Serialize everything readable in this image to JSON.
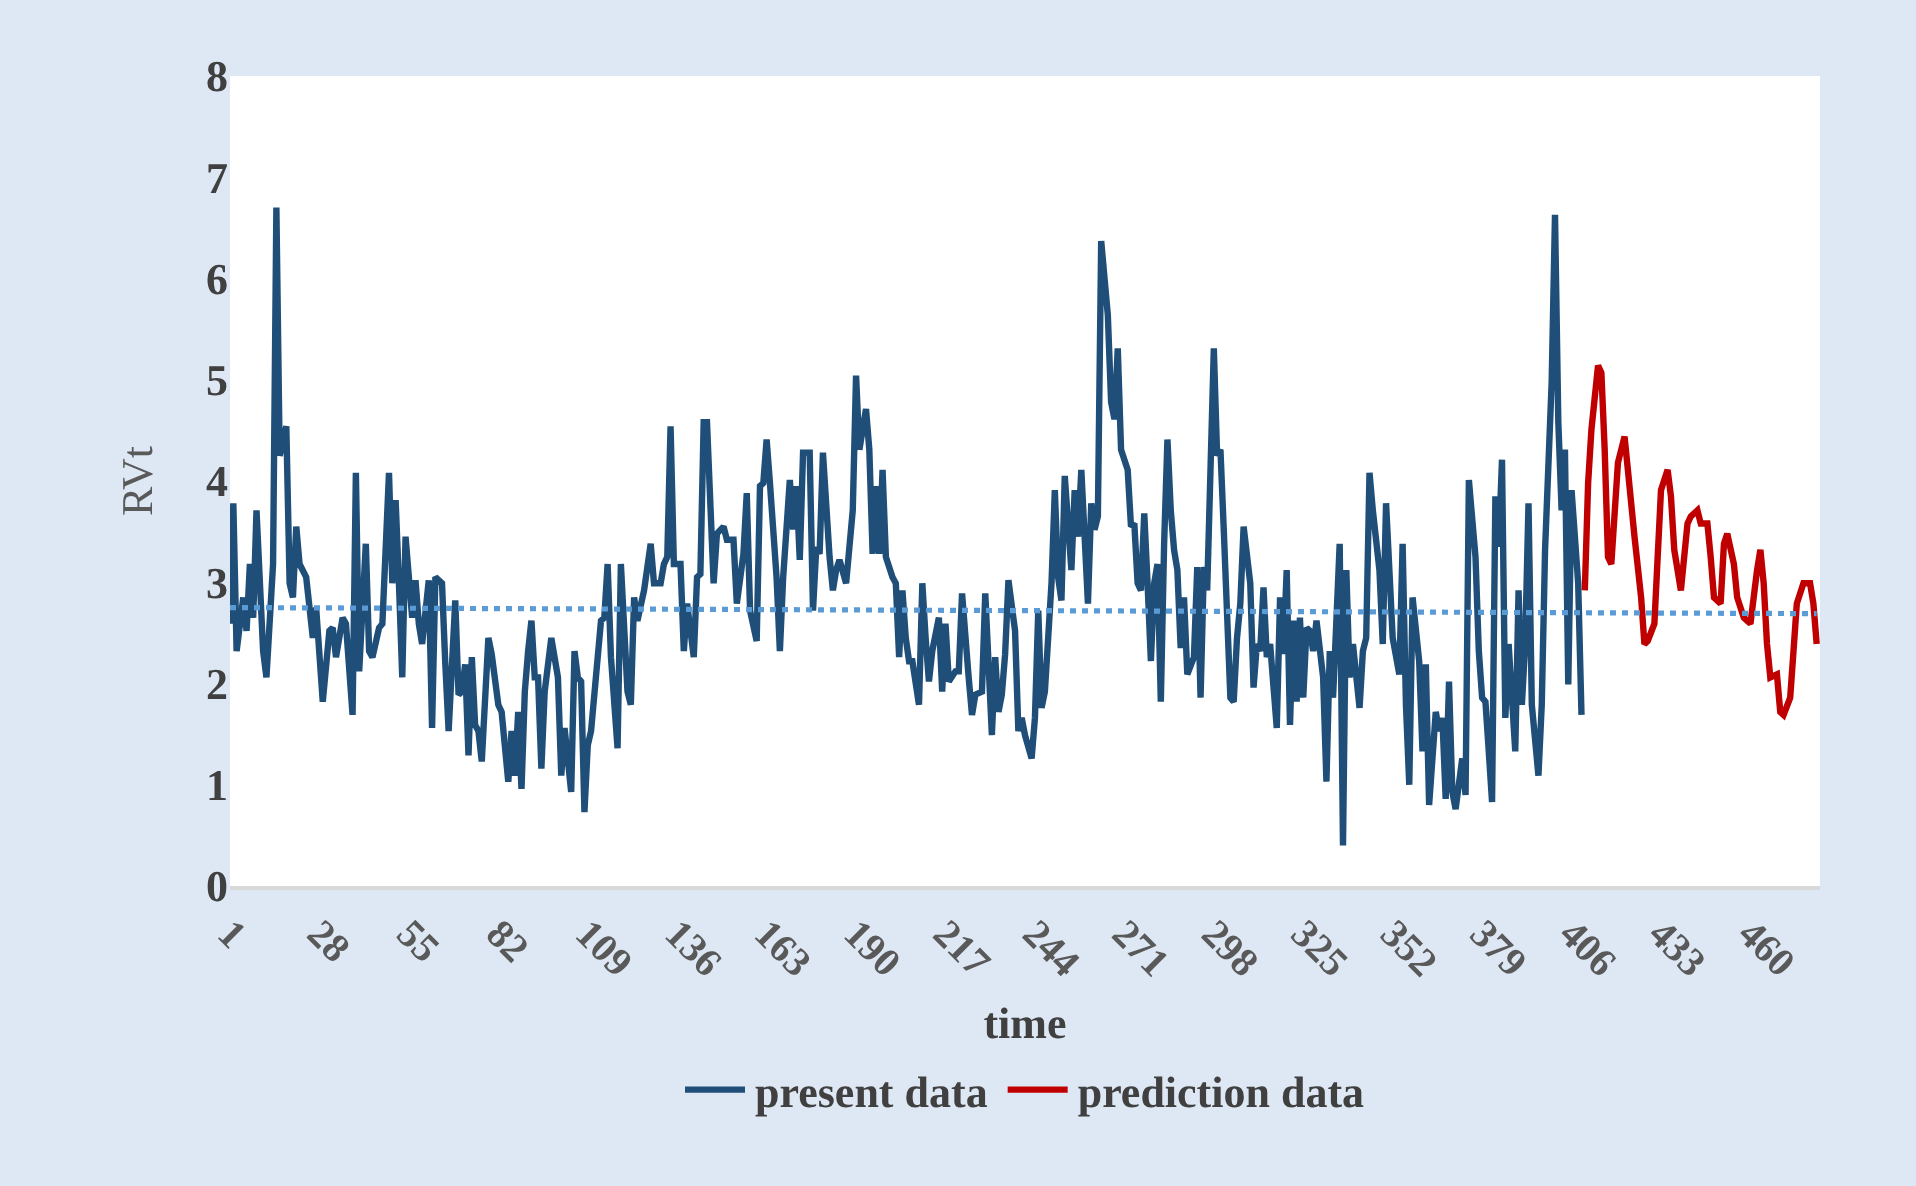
{
  "chart_data": {
    "type": "line",
    "xlabel": "time",
    "ylabel": "RVt",
    "xlim": [
      1,
      481
    ],
    "ylim": [
      0,
      8
    ],
    "xticks": [
      1,
      28,
      55,
      82,
      109,
      136,
      163,
      190,
      217,
      244,
      271,
      298,
      325,
      352,
      379,
      406,
      433,
      460
    ],
    "yticks": [
      0,
      1,
      2,
      3,
      4,
      5,
      6,
      7,
      8
    ],
    "legend": "bottom",
    "marker": "none",
    "series": [
      {
        "name": "present data",
        "color": "#1f4e79",
        "line_style": "solid",
        "x": [
          1,
          2,
          3,
          5,
          6,
          7,
          8,
          9,
          11,
          12,
          14,
          15,
          16,
          18,
          19,
          20,
          21,
          22,
          24,
          26,
          27,
          29,
          31,
          32,
          33,
          35,
          36,
          38,
          39,
          40,
          42,
          43,
          44,
          46,
          47,
          49,
          50,
          51,
          52,
          53,
          54,
          56,
          57,
          58,
          59,
          61,
          62,
          63,
          65,
          66,
          67,
          69,
          70,
          71,
          72,
          73,
          74,
          75,
          76,
          77,
          79,
          80,
          82,
          83,
          85,
          86,
          87,
          88,
          89,
          90,
          91,
          92,
          93,
          94,
          95,
          96,
          98,
          100,
          101,
          102,
          104,
          105,
          106,
          107,
          108,
          109,
          110,
          113,
          114,
          115,
          116,
          118,
          119,
          121,
          122,
          123,
          124,
          126,
          128,
          129,
          131,
          132,
          133,
          134,
          135,
          137,
          138,
          139,
          141,
          142,
          143,
          144,
          145,
          147,
          148,
          150,
          151,
          153,
          154,
          156,
          157,
          158,
          160,
          161,
          162,
          163,
          164,
          166,
          167,
          168,
          170,
          171,
          172,
          173,
          174,
          176,
          177,
          178,
          179,
          180,
          182,
          183,
          184,
          185,
          187,
          188,
          189,
          190,
          191,
          193,
          194,
          195,
          196,
          197,
          198,
          199,
          201,
          202,
          203,
          204,
          205,
          206,
          207,
          209,
          210,
          211,
          212,
          213,
          215,
          216,
          217,
          218,
          220,
          221,
          222,
          224,
          225,
          226,
          228,
          229,
          230,
          231,
          232,
          233,
          234,
          235,
          236,
          238,
          239,
          240,
          241,
          243,
          244,
          245,
          246,
          247,
          249,
          250,
          251,
          252,
          253,
          255,
          256,
          257,
          258,
          259,
          260,
          261,
          262,
          263,
          264,
          266,
          267,
          268,
          269,
          270,
          272,
          273,
          274,
          275,
          276,
          277,
          278,
          279,
          280,
          281,
          282,
          283,
          284,
          285,
          286,
          287,
          288,
          289,
          290,
          292,
          293,
          294,
          295,
          296,
          298,
          299,
          300,
          301,
          303,
          304,
          305,
          306,
          307,
          309,
          310,
          311,
          312,
          313,
          314,
          315,
          317,
          318,
          319,
          320,
          321,
          322,
          323,
          324,
          325,
          326,
          327,
          328,
          329,
          331,
          332,
          333,
          334,
          336,
          337,
          338,
          339,
          340,
          342,
          343,
          344,
          345,
          346,
          348,
          349,
          350,
          351,
          352,
          354,
          355,
          356,
          357,
          358,
          360,
          361,
          362,
          363,
          365,
          366,
          367,
          368,
          369,
          370,
          371,
          373,
          374,
          375,
          377,
          378,
          379,
          380,
          381,
          382,
          383,
          384,
          385,
          386,
          387,
          389,
          390,
          391,
          392,
          393,
          394,
          396,
          397,
          398,
          400,
          401,
          402,
          403,
          404,
          405,
          406,
          408,
          409
        ],
        "values": [
          2.59,
          3.78,
          2.32,
          2.85,
          2.52,
          3.18,
          2.65,
          3.71,
          2.32,
          2.06,
          3.18,
          6.7,
          4.25,
          4.54,
          2.99,
          2.85,
          3.55,
          3.18,
          3.05,
          2.45,
          2.75,
          1.82,
          2.52,
          2.55,
          2.26,
          2.65,
          2.59,
          1.69,
          4.08,
          2.12,
          3.38,
          2.32,
          2.26,
          2.55,
          2.59,
          4.08,
          2.99,
          3.81,
          2.99,
          2.06,
          3.45,
          2.65,
          3.02,
          2.59,
          2.39,
          3.02,
          1.56,
          3.05,
          2.99,
          2.19,
          1.53,
          2.82,
          1.89,
          1.92,
          2.19,
          1.29,
          2.26,
          1.59,
          1.53,
          1.23,
          2.45,
          2.29,
          1.79,
          1.72,
          1.03,
          1.53,
          1.09,
          1.72,
          0.96,
          1.92,
          2.32,
          2.62,
          2.06,
          2.06,
          1.16,
          1.92,
          2.45,
          2.06,
          1.09,
          1.56,
          0.93,
          2.32,
          2.06,
          2.02,
          0.73,
          1.39,
          1.53,
          2.62,
          2.65,
          3.18,
          2.26,
          1.36,
          3.18,
          1.92,
          1.79,
          2.85,
          2.62,
          2.92,
          3.38,
          2.99,
          2.99,
          3.18,
          3.25,
          4.54,
          3.18,
          3.18,
          2.32,
          2.79,
          2.26,
          3.05,
          3.08,
          4.58,
          4.58,
          2.99,
          3.48,
          3.55,
          3.42,
          3.42,
          2.79,
          3.28,
          3.88,
          2.72,
          2.42,
          3.95,
          3.98,
          4.41,
          3.98,
          3.05,
          2.32,
          3.05,
          4.01,
          3.52,
          3.95,
          3.22,
          4.28,
          4.28,
          2.72,
          3.35,
          3.28,
          4.28,
          3.25,
          2.92,
          3.12,
          3.22,
          2.99,
          3.35,
          3.71,
          5.04,
          4.31,
          4.71,
          4.31,
          3.28,
          3.95,
          3.28,
          4.11,
          3.25,
          3.05,
          2.99,
          2.26,
          2.92,
          2.45,
          2.22,
          2.22,
          1.79,
          2.99,
          2.45,
          2.02,
          2.32,
          2.65,
          1.92,
          2.59,
          2.02,
          2.12,
          2.12,
          2.89,
          2.06,
          1.69,
          1.89,
          1.92,
          2.89,
          2.19,
          1.49,
          2.26,
          1.72,
          1.89,
          2.29,
          3.02,
          2.52,
          1.53,
          1.66,
          1.49,
          1.26,
          1.66,
          2.72,
          1.76,
          1.92,
          2.99,
          3.91,
          3.05,
          2.82,
          4.05,
          3.12,
          3.91,
          3.45,
          4.11,
          3.45,
          2.79,
          3.78,
          3.52,
          3.65,
          6.37,
          5.64,
          4.78,
          4.61,
          5.31,
          4.31,
          4.11,
          3.55,
          3.58,
          2.99,
          2.92,
          3.68,
          2.99,
          2.22,
          2.99,
          3.18,
          1.82,
          3.38,
          4.41,
          3.71,
          3.32,
          3.12,
          2.35,
          2.85,
          2.09,
          2.26,
          3.15,
          1.86,
          3.15,
          2.92,
          5.31,
          4.25,
          4.31,
          3.52,
          1.86,
          1.82,
          2.45,
          2.79,
          3.55,
          2.99,
          1.96,
          2.39,
          2.32,
          2.95,
          2.26,
          2.39,
          1.56,
          2.85,
          2.29,
          3.12,
          1.59,
          2.62,
          1.82,
          2.65,
          1.86,
          2.55,
          2.52,
          2.32,
          2.62,
          2.06,
          1.03,
          2.32,
          1.86,
          3.38,
          0.4,
          3.12,
          2.06,
          2.39,
          1.76,
          2.32,
          2.45,
          4.08,
          3.71,
          3.12,
          2.39,
          3.78,
          3.12,
          2.45,
          2.09,
          3.38,
          1.79,
          1.0,
          2.85,
          2.22,
          1.33,
          2.19,
          0.8,
          1.72,
          1.53,
          1.66,
          0.86,
          2.02,
          0.93,
          0.76,
          1.26,
          0.9,
          4.01,
          3.25,
          2.32,
          1.86,
          1.82,
          1.33,
          0.83,
          3.85,
          3.35,
          4.21,
          1.66,
          2.39,
          1.33,
          2.92,
          1.79,
          2.39,
          3.78,
          1.79,
          1.09,
          1.79,
          3.32,
          4.98,
          6.63,
          4.58,
          3.71,
          4.31,
          1.99,
          3.91,
          2.99,
          1.69
        ]
      },
      {
        "name": "prediction data",
        "color": "#c00000",
        "line_style": "solid",
        "x": [
          410,
          411,
          412,
          414,
          415,
          416,
          417,
          418,
          420,
          422,
          423,
          425,
          427,
          428,
          429,
          431,
          432,
          433,
          435,
          436,
          437,
          439,
          441,
          442,
          444,
          445,
          447,
          448,
          449,
          451,
          452,
          453,
          455,
          456,
          458,
          460,
          462,
          463,
          464,
          465,
          466,
          468,
          469,
          470,
          472,
          473,
          474,
          476,
          478,
          479,
          480
        ],
        "values": [
          2.92,
          3.98,
          4.51,
          5.14,
          5.07,
          4.31,
          3.25,
          3.18,
          4.18,
          4.44,
          4.11,
          3.45,
          2.85,
          2.39,
          2.42,
          2.59,
          3.25,
          3.91,
          4.11,
          3.85,
          3.32,
          2.92,
          3.58,
          3.65,
          3.71,
          3.58,
          3.58,
          3.25,
          2.85,
          2.79,
          3.38,
          3.48,
          3.18,
          2.85,
          2.65,
          2.59,
          3.12,
          3.32,
          2.99,
          2.39,
          2.06,
          2.09,
          1.72,
          1.69,
          1.86,
          2.32,
          2.79,
          2.99,
          2.99,
          2.79,
          2.39
        ]
      },
      {
        "color": "#5b9bd5",
        "line_style": "dotted",
        "x": [
          1,
          480
        ],
        "values": [
          2.75,
          2.69
        ]
      }
    ]
  }
}
